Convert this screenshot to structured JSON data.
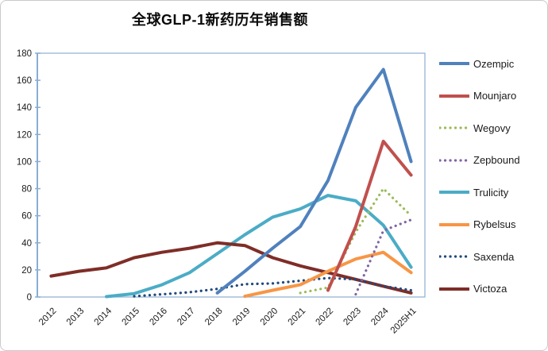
{
  "title": "全球GLP-1新药历年销售额",
  "chart_data": {
    "type": "line",
    "unit_note": "",
    "categories": [
      "2012",
      "2013",
      "2014",
      "2015",
      "2016",
      "2017",
      "2018",
      "2019",
      "2020",
      "2021",
      "2022",
      "2023",
      "2024",
      "2025H1"
    ],
    "series": [
      {
        "name": "Ozempic",
        "color": "#4F81BD",
        "style": "solid",
        "values": [
          null,
          null,
          null,
          null,
          null,
          null,
          3,
          19,
          36,
          52,
          86,
          140,
          168,
          100
        ]
      },
      {
        "name": "Mounjaro",
        "color": "#C0504D",
        "style": "solid",
        "values": [
          null,
          null,
          null,
          null,
          null,
          null,
          null,
          null,
          null,
          null,
          5,
          52,
          115,
          90
        ]
      },
      {
        "name": "Wegovy",
        "color": "#9BBB59",
        "style": "dotted",
        "values": [
          null,
          null,
          null,
          null,
          null,
          null,
          null,
          null,
          null,
          3,
          7,
          48,
          80,
          60
        ]
      },
      {
        "name": "Zepbound",
        "color": "#8064A2",
        "style": "dotted",
        "values": [
          null,
          null,
          null,
          null,
          null,
          null,
          null,
          null,
          null,
          null,
          null,
          2,
          49,
          57
        ]
      },
      {
        "name": "Trulicity",
        "color": "#4BACC6",
        "style": "solid",
        "values": [
          null,
          null,
          0.3,
          2.5,
          9,
          18,
          32,
          46,
          59,
          65,
          75,
          71,
          53,
          22
        ]
      },
      {
        "name": "Rybelsus",
        "color": "#F79646",
        "style": "solid",
        "values": [
          null,
          null,
          null,
          null,
          null,
          null,
          null,
          0.5,
          5,
          9,
          19,
          28,
          33,
          18
        ]
      },
      {
        "name": "Saxenda",
        "color": "#1F497D",
        "style": "dotted",
        "values": [
          null,
          null,
          null,
          0.5,
          2,
          3.5,
          6,
          9.5,
          10,
          12,
          14,
          13,
          8,
          5
        ]
      },
      {
        "name": "Victoza",
        "color": "#7F2D28",
        "style": "solid",
        "values": [
          15.5,
          19,
          21.5,
          29,
          33,
          36,
          40,
          38,
          29,
          23,
          18,
          13,
          8,
          3
        ]
      }
    ],
    "ylim": [
      0,
      180
    ],
    "ytick_step": 20,
    "ytick_labels": [
      "0",
      "20",
      "40",
      "60",
      "80",
      "100",
      "120",
      "140",
      "160",
      "180"
    ],
    "grid": false,
    "legend_position": "right"
  },
  "colors": {
    "axis": "#95B3D7",
    "axis_line": "#88AED4",
    "text": "#1a1a1a",
    "background": "#FFFFFF"
  }
}
